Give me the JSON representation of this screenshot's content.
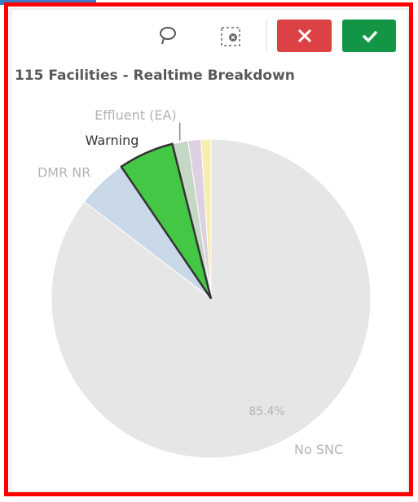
{
  "chart_data": {
    "type": "pie",
    "title": "115 Facilities - Realtime Breakdown",
    "categories": [
      "No SNC",
      "DMR NR",
      "Warning",
      "Effluent (EA)",
      null,
      null
    ],
    "values": [
      85.4,
      5.1,
      5.6,
      1.6,
      1.3,
      1.0
    ],
    "value_labels": [
      "85.4%",
      null,
      null,
      null,
      null,
      null
    ],
    "colors": [
      "#e6e6e6",
      "#c9d9e7",
      "#44c745",
      "#c5d8c5",
      "#ddd0e1",
      "#f6eeae"
    ],
    "selected": "Warning"
  }
}
